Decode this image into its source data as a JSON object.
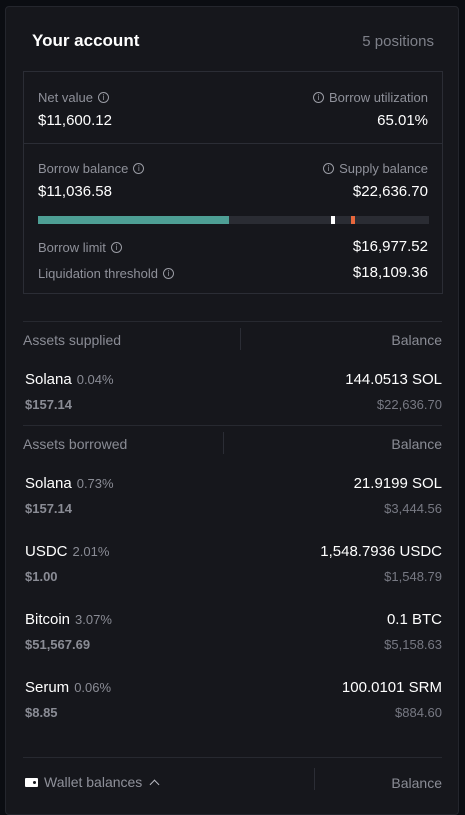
{
  "header": {
    "title": "Your account",
    "positions": "5 positions"
  },
  "summary": {
    "net_value_label": "Net value",
    "net_value": "$11,600.12",
    "borrow_utilization_label": "Borrow utilization",
    "borrow_utilization": "65.01%",
    "borrow_balance_label": "Borrow balance",
    "borrow_balance": "$11,036.58",
    "supply_balance_label": "Supply balance",
    "supply_balance": "$22,636.70",
    "utilization_fraction": 0.4876,
    "borrow_limit_fraction": 0.75,
    "liquidation_threshold_fraction": 0.8,
    "borrow_limit_label": "Borrow limit",
    "borrow_limit": "$16,977.52",
    "liquidation_threshold_label": "Liquidation threshold",
    "liquidation_threshold": "$18,109.36"
  },
  "supplied": {
    "heading": "Assets supplied",
    "balance_heading": "Balance",
    "items": [
      {
        "name": "Solana",
        "rate": "0.04%",
        "price": "$157.14",
        "amount": "144.0513 SOL",
        "usd": "$22,636.70"
      }
    ]
  },
  "borrowed": {
    "heading": "Assets borrowed",
    "balance_heading": "Balance",
    "items": [
      {
        "name": "Solana",
        "rate": "0.73%",
        "price": "$157.14",
        "amount": "21.9199 SOL",
        "usd": "$3,444.56"
      },
      {
        "name": "USDC",
        "rate": "2.01%",
        "price": "$1.00",
        "amount": "1,548.7936 USDC",
        "usd": "$1,548.79"
      },
      {
        "name": "Bitcoin",
        "rate": "3.07%",
        "price": "$51,567.69",
        "amount": "0.1 BTC",
        "usd": "$5,158.63"
      },
      {
        "name": "Serum",
        "rate": "0.06%",
        "price": "$8.85",
        "amount": "100.0101 SRM",
        "usd": "$884.60"
      }
    ]
  },
  "wallet": {
    "label": "Wallet balances",
    "balance_heading": "Balance"
  },
  "colors": {
    "utilization_bar": "#4e9f95",
    "borrow_limit_marker": "#ffffff",
    "liquidation_marker": "#e8673c"
  }
}
